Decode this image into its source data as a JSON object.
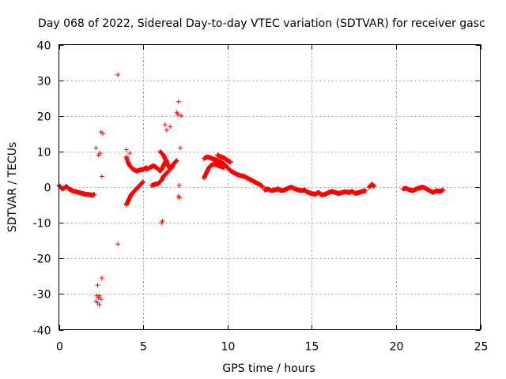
{
  "chart_data": {
    "type": "scatter",
    "title": "Day 068 of 2022, Sidereal Day-to-day VTEC variation (SDTVAR) for receiver gasc",
    "xlabel": "GPS time / hours",
    "ylabel": "SDTVAR / TECUs",
    "xlim": [
      0,
      25
    ],
    "ylim": [
      -40,
      40
    ],
    "xticks": [
      0,
      5,
      10,
      15,
      20,
      25
    ],
    "yticks": [
      -40,
      -30,
      -20,
      -10,
      0,
      10,
      20,
      30,
      40
    ],
    "grid": true,
    "marker": "+",
    "color": "#ff0000",
    "segments": [
      {
        "x": [
          0.0,
          0.1,
          0.2,
          0.3,
          0.45,
          0.6,
          0.8,
          1.0,
          1.2,
          1.4,
          1.6,
          1.8,
          2.0,
          2.1
        ],
        "y": [
          0.5,
          0.0,
          -0.5,
          -0.3,
          0.2,
          -0.5,
          -1.0,
          -1.3,
          -1.5,
          -1.8,
          -2.0,
          -2.1,
          -2.3,
          -2.0
        ]
      },
      {
        "x": [
          4.0,
          4.1,
          4.2,
          4.3,
          4.4,
          4.5,
          4.6,
          4.7,
          4.8,
          4.9,
          5.0
        ],
        "y": [
          -5.0,
          -4.0,
          -3.0,
          -2.0,
          -1.5,
          -1.0,
          -0.5,
          0.0,
          0.5,
          1.0,
          1.5
        ]
      },
      {
        "x": [
          4.0,
          4.1,
          4.2,
          4.3,
          4.4,
          4.5,
          4.6,
          4.8,
          5.0,
          5.1,
          5.2
        ],
        "y": [
          8.5,
          7.0,
          6.0,
          5.5,
          5.0,
          4.8,
          4.5,
          4.8,
          5.0,
          5.2,
          5.5
        ]
      },
      {
        "x": [
          5.2,
          5.4,
          5.6,
          5.8,
          6.0,
          6.1,
          6.2,
          6.3,
          6.4
        ],
        "y": [
          5.0,
          5.5,
          6.0,
          5.5,
          4.5,
          5.0,
          6.0,
          7.0,
          7.5
        ]
      },
      {
        "x": [
          5.5,
          5.7,
          5.9,
          6.0,
          6.1,
          6.2,
          6.3,
          6.4,
          6.5
        ],
        "y": [
          0.5,
          0.8,
          1.0,
          1.5,
          2.0,
          3.0,
          3.5,
          4.0,
          4.5
        ]
      },
      {
        "x": [
          6.0,
          6.1,
          6.2,
          6.3,
          6.4,
          6.5,
          6.6,
          6.7,
          6.8,
          6.9,
          7.0
        ],
        "y": [
          10.0,
          9.5,
          9.0,
          8.0,
          7.0,
          6.0,
          5.0,
          5.5,
          6.5,
          7.0,
          7.5
        ]
      },
      {
        "x": [
          8.6,
          8.8,
          9.0,
          9.2,
          9.4,
          9.6,
          9.8,
          10.0,
          10.2,
          10.4,
          10.6,
          10.8,
          11.0,
          11.2,
          11.4,
          11.6,
          11.8,
          12.0,
          12.1
        ],
        "y": [
          8.0,
          8.5,
          8.2,
          7.8,
          7.5,
          7.0,
          6.5,
          5.5,
          4.5,
          4.0,
          3.5,
          3.2,
          3.0,
          2.5,
          2.0,
          1.5,
          1.0,
          0.5,
          0.0
        ]
      },
      {
        "x": [
          8.6,
          8.7,
          8.8,
          8.9,
          9.0,
          9.2,
          9.4,
          9.6,
          9.8
        ],
        "y": [
          2.5,
          3.5,
          4.5,
          5.5,
          6.0,
          6.5,
          6.2,
          5.8,
          5.5
        ]
      },
      {
        "x": [
          9.4,
          9.6,
          9.8,
          10.0,
          10.2
        ],
        "y": [
          9.0,
          8.5,
          8.2,
          7.5,
          7.0
        ]
      },
      {
        "x": [
          12.2,
          12.4,
          12.6,
          12.8,
          13.0,
          13.2,
          13.4,
          13.6,
          13.8,
          14.0,
          14.2,
          14.4,
          14.6
        ],
        "y": [
          -0.8,
          -0.5,
          -1.0,
          -0.8,
          -0.5,
          -1.0,
          -0.8,
          -0.3,
          0.0,
          -0.5,
          -0.8,
          -1.0,
          -0.8
        ]
      },
      {
        "x": [
          14.6,
          14.8,
          15.0,
          15.2,
          15.4,
          15.6,
          15.8,
          16.0,
          16.2,
          16.4,
          16.6,
          16.8,
          17.0,
          17.2,
          17.4,
          17.6,
          17.8,
          18.0,
          18.2
        ],
        "y": [
          -1.0,
          -1.5,
          -1.8,
          -2.0,
          -1.5,
          -2.2,
          -2.0,
          -1.5,
          -1.2,
          -1.5,
          -1.8,
          -1.5,
          -1.3,
          -1.5,
          -1.2,
          -1.8,
          -1.5,
          -1.2,
          -1.0
        ]
      },
      {
        "x": [
          18.4,
          18.5,
          18.6,
          18.7
        ],
        "y": [
          0.0,
          0.5,
          0.8,
          0.2
        ]
      },
      {
        "x": [
          20.4,
          20.6,
          20.8,
          21.0,
          21.2,
          21.4,
          21.6,
          21.8,
          22.0,
          22.2,
          22.4,
          22.6,
          22.8
        ],
        "y": [
          -0.5,
          -0.3,
          -0.8,
          -1.0,
          -0.5,
          -0.2,
          0.0,
          -0.5,
          -1.0,
          -1.5,
          -1.0,
          -1.2,
          -0.8
        ]
      }
    ],
    "points": {
      "x": [
        2.2,
        2.3,
        2.35,
        2.4,
        2.5,
        2.55,
        2.3,
        2.2,
        2.35,
        2.45,
        2.5,
        2.6,
        2.55,
        2.25,
        2.4,
        3.5,
        3.5,
        4.0,
        4.2,
        6.1,
        6.15,
        6.3,
        6.4,
        6.6,
        7.0,
        7.05,
        7.1,
        7.2,
        7.25,
        7.15,
        7.1,
        7.15
      ],
      "y": [
        -32.0,
        -32.5,
        -31.0,
        -30.5,
        -31.5,
        -25.5,
        -27.5,
        11.0,
        9.0,
        9.5,
        15.5,
        15.0,
        3.0,
        -30.5,
        -33.0,
        31.5,
        -16.0,
        10.5,
        9.5,
        -10.0,
        -9.5,
        17.5,
        16.0,
        17.0,
        21.0,
        20.5,
        24.0,
        11.0,
        20.0,
        0.5,
        -2.5,
        -3.0
      ]
    }
  }
}
